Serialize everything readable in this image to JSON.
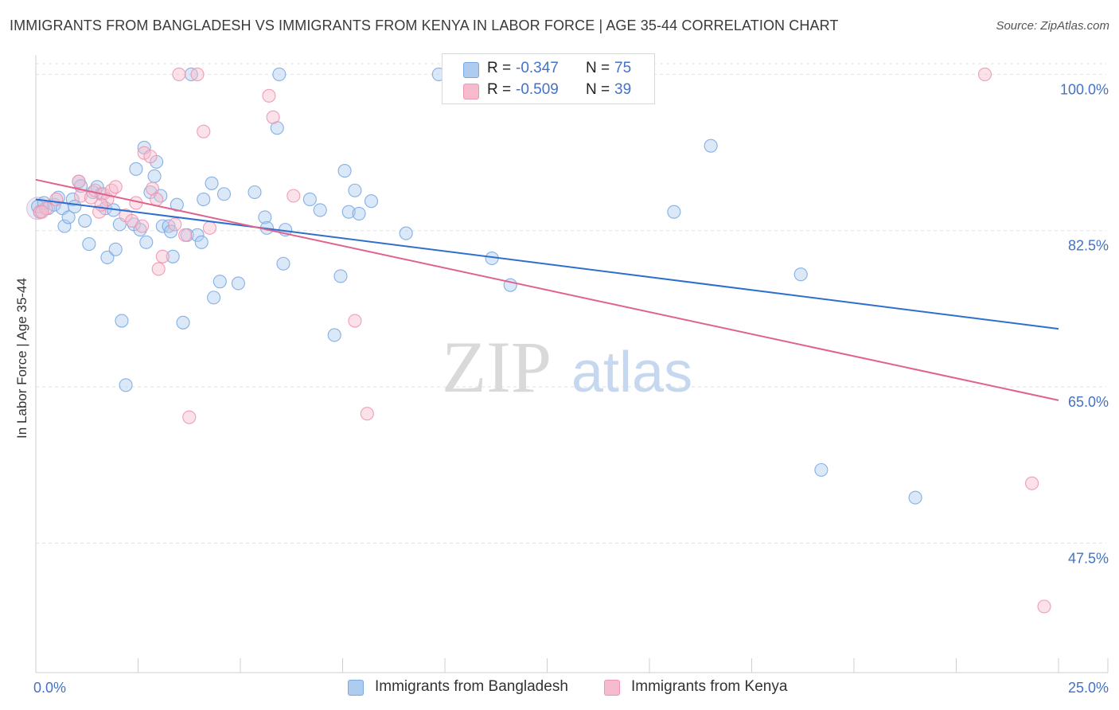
{
  "title": "IMMIGRANTS FROM BANGLADESH VS IMMIGRANTS FROM KENYA IN LABOR FORCE | AGE 35-44 CORRELATION CHART",
  "source": "Source: ZipAtlas.com",
  "colors": {
    "bangladesh_fill": "#aecbf0",
    "bangladesh_stroke": "#7aa8e0",
    "bangladesh_line": "#2e6fce",
    "kenya_fill": "#f6bccd",
    "kenya_stroke": "#ef93b0",
    "kenya_line": "#e0628c",
    "tick_text": "#4472c4",
    "grid": "#e2e2e2"
  },
  "legend_top": {
    "rows": [
      {
        "r_key": "R =",
        "r_value": "-0.347",
        "n_key": "N =",
        "n_value": "75"
      },
      {
        "r_key": "R =",
        "r_value": "-0.509",
        "n_key": "N =",
        "n_value": "39"
      }
    ]
  },
  "chart_data": {
    "type": "scatter",
    "watermark": "ZIPatlas",
    "ylabel": "In Labor Force | Age 35-44",
    "xlim": [
      0,
      25
    ],
    "ylim": [
      33,
      102
    ],
    "x_tick_labels": [
      {
        "v": 0,
        "label": "0.0%"
      },
      {
        "v": 25,
        "label": "25.0%"
      }
    ],
    "x_minor_ticks": [
      2.5,
      5,
      7.5,
      10,
      12.5,
      15,
      17.5,
      20,
      22.5,
      25
    ],
    "y_ticks": [
      {
        "v": 100,
        "label": "100.0%"
      },
      {
        "v": 82.5,
        "label": "82.5%"
      },
      {
        "v": 65,
        "label": "65.0%"
      },
      {
        "v": 47.5,
        "label": "47.5%"
      }
    ],
    "grid": true,
    "legend_position": "bottom",
    "series": [
      {
        "name": "Immigrants from Bangladesh",
        "r": -0.347,
        "n": 75,
        "trend": {
          "x0": 0,
          "y0": 86.0,
          "x1": 25,
          "y1": 71.5
        },
        "points": [
          [
            0.05,
            85.2
          ],
          [
            0.1,
            84.6
          ],
          [
            0.2,
            85.6
          ],
          [
            0.3,
            85.0
          ],
          [
            0.45,
            85.4
          ],
          [
            0.55,
            86.2
          ],
          [
            0.65,
            85.0
          ],
          [
            0.7,
            83.0
          ],
          [
            0.8,
            84.0
          ],
          [
            0.9,
            86.0
          ],
          [
            0.95,
            85.2
          ],
          [
            1.05,
            88.0
          ],
          [
            1.1,
            87.5
          ],
          [
            1.2,
            83.6
          ],
          [
            1.3,
            81.0
          ],
          [
            1.4,
            86.8
          ],
          [
            1.5,
            87.4
          ],
          [
            1.6,
            86.6
          ],
          [
            1.7,
            85.0
          ],
          [
            1.75,
            79.5
          ],
          [
            1.9,
            84.8
          ],
          [
            1.95,
            80.4
          ],
          [
            2.05,
            83.2
          ],
          [
            2.1,
            72.4
          ],
          [
            2.2,
            65.2
          ],
          [
            2.4,
            83.2
          ],
          [
            2.45,
            89.4
          ],
          [
            2.55,
            82.6
          ],
          [
            2.65,
            91.8
          ],
          [
            2.7,
            81.2
          ],
          [
            2.8,
            86.8
          ],
          [
            2.9,
            88.6
          ],
          [
            2.95,
            90.2
          ],
          [
            3.05,
            86.4
          ],
          [
            3.1,
            83.0
          ],
          [
            3.25,
            83.0
          ],
          [
            3.3,
            82.4
          ],
          [
            3.35,
            79.6
          ],
          [
            3.45,
            85.4
          ],
          [
            3.6,
            72.2
          ],
          [
            3.7,
            82.0
          ],
          [
            3.8,
            100.0
          ],
          [
            3.95,
            82.0
          ],
          [
            4.05,
            81.2
          ],
          [
            4.1,
            86.0
          ],
          [
            4.3,
            87.8
          ],
          [
            4.35,
            75.0
          ],
          [
            4.5,
            76.8
          ],
          [
            4.6,
            86.6
          ],
          [
            4.95,
            76.6
          ],
          [
            5.35,
            86.8
          ],
          [
            5.6,
            84.0
          ],
          [
            5.65,
            82.8
          ],
          [
            5.9,
            94.0
          ],
          [
            5.95,
            100.0
          ],
          [
            6.05,
            78.8
          ],
          [
            6.1,
            82.6
          ],
          [
            6.7,
            86.0
          ],
          [
            6.95,
            84.8
          ],
          [
            7.3,
            70.8
          ],
          [
            7.45,
            77.4
          ],
          [
            7.55,
            89.2
          ],
          [
            7.65,
            84.6
          ],
          [
            7.8,
            87.0
          ],
          [
            7.9,
            84.4
          ],
          [
            8.2,
            85.8
          ],
          [
            9.05,
            82.2
          ],
          [
            9.85,
            100.0
          ],
          [
            11.15,
            79.4
          ],
          [
            11.6,
            76.4
          ],
          [
            15.6,
            84.6
          ],
          [
            16.5,
            92.0
          ],
          [
            18.7,
            77.6
          ],
          [
            19.2,
            55.7
          ],
          [
            21.5,
            52.6
          ]
        ]
      },
      {
        "name": "Immigrants from Kenya",
        "r": -0.509,
        "n": 39,
        "trend": {
          "x0": 0,
          "y0": 88.2,
          "x1": 25,
          "y1": 63.5
        },
        "points": [
          [
            0.1,
            84.6
          ],
          [
            0.25,
            85.0
          ],
          [
            0.5,
            86.0
          ],
          [
            1.05,
            88.0
          ],
          [
            1.1,
            86.4
          ],
          [
            1.35,
            86.2
          ],
          [
            1.45,
            87.0
          ],
          [
            1.55,
            84.6
          ],
          [
            1.65,
            86.6
          ],
          [
            1.75,
            86.0
          ],
          [
            1.85,
            87.0
          ],
          [
            1.95,
            87.4
          ],
          [
            2.2,
            84.2
          ],
          [
            2.35,
            83.6
          ],
          [
            2.45,
            85.6
          ],
          [
            2.6,
            83.0
          ],
          [
            2.65,
            91.2
          ],
          [
            2.8,
            90.8
          ],
          [
            2.85,
            87.2
          ],
          [
            3.0,
            78.2
          ],
          [
            3.1,
            79.6
          ],
          [
            3.4,
            83.2
          ],
          [
            3.5,
            100.0
          ],
          [
            3.65,
            82.0
          ],
          [
            3.75,
            61.6
          ],
          [
            3.95,
            100.0
          ],
          [
            4.1,
            93.6
          ],
          [
            4.25,
            82.8
          ],
          [
            5.7,
            97.6
          ],
          [
            5.8,
            95.2
          ],
          [
            6.3,
            86.4
          ],
          [
            7.8,
            72.4
          ],
          [
            8.1,
            62.0
          ],
          [
            23.2,
            100.0
          ],
          [
            24.35,
            54.2
          ],
          [
            24.65,
            40.4
          ],
          [
            0.15,
            84.6
          ],
          [
            1.6,
            85.4
          ],
          [
            2.95,
            86.0
          ]
        ]
      }
    ]
  }
}
